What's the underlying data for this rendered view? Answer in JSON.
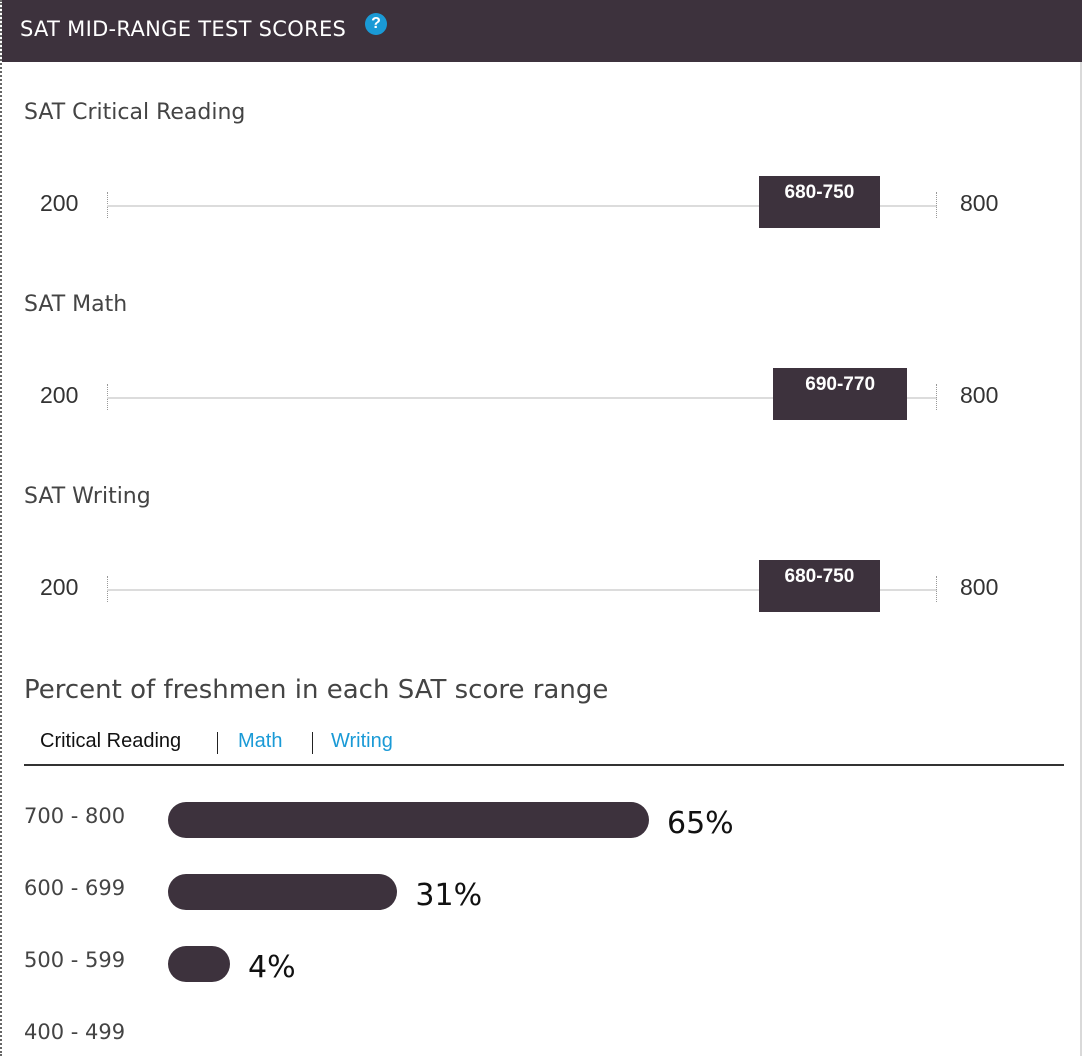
{
  "header": {
    "title": "SAT MID-RANGE TEST SCORES",
    "help_icon": "question-icon",
    "help_glyph": "?"
  },
  "scale": {
    "min": 200,
    "max": 800,
    "min_label": "200",
    "max_label": "800"
  },
  "tests": [
    {
      "label": "SAT Critical Reading",
      "range_label": "680-750",
      "low": 680,
      "high": 750
    },
    {
      "label": "SAT Math",
      "range_label": "690-770",
      "low": 690,
      "high": 770
    },
    {
      "label": "SAT Writing",
      "range_label": "680-750",
      "low": 680,
      "high": 750
    }
  ],
  "distribution": {
    "title": "Percent of freshmen in each SAT score range",
    "tabs": [
      {
        "label": "Critical Reading",
        "active": true
      },
      {
        "label": "Math",
        "active": false
      },
      {
        "label": "Writing",
        "active": false
      }
    ],
    "rows": [
      {
        "label": "700 - 800",
        "percent": 65,
        "percent_label": "65%"
      },
      {
        "label": "600 - 699",
        "percent": 31,
        "percent_label": "31%"
      },
      {
        "label": "500 - 599",
        "percent": 4,
        "percent_label": "4%"
      },
      {
        "label": "400 - 499",
        "percent": null,
        "percent_label": ""
      }
    ]
  },
  "colors": {
    "accent": "#3d323d",
    "link": "#1a9ad6"
  }
}
